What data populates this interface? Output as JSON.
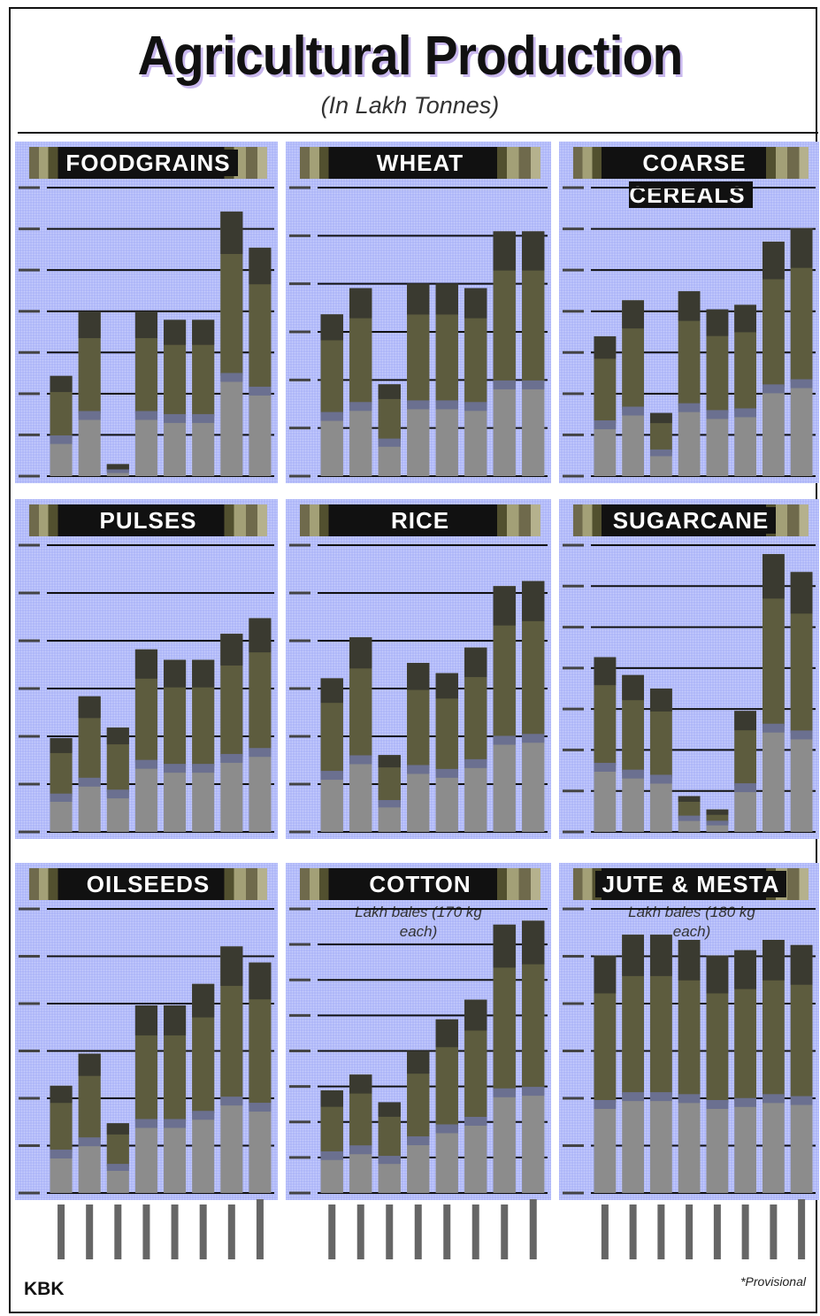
{
  "title": "Agricultural Production",
  "subtitle": "(In Lakh Tonnes)",
  "footer": {
    "credit": "KBK",
    "note": "*Provisional"
  },
  "colors": {
    "panel_bg": "#aab3f8",
    "bar_top": "#3a3a30",
    "bar_mid": "#5d5c3e",
    "bar_band": "#6b7090",
    "bar_base": "#8c8c8c",
    "grid": "#111111"
  },
  "chart_data": [
    {
      "type": "bar",
      "title": "FOODGRAINS",
      "note": "",
      "values": [
        25,
        41,
        3,
        41,
        39,
        39,
        66,
        57
      ],
      "ylim": [
        0,
        72
      ],
      "gridlines": 7
    },
    {
      "type": "bar",
      "title": "WHEAT",
      "note": "",
      "values": [
        37,
        43,
        21,
        44,
        44,
        43,
        56,
        56
      ],
      "ylim": [
        0,
        66
      ],
      "gridlines": 6
    },
    {
      "type": "bar",
      "title": "COARSE CEREALS",
      "note": "",
      "values": [
        31,
        39,
        14,
        41,
        37,
        38,
        52,
        55
      ],
      "ylim": [
        0,
        64
      ],
      "gridlines": 7
    },
    {
      "type": "bar",
      "title": "PULSES",
      "note": "",
      "values": [
        18,
        26,
        20,
        35,
        33,
        33,
        38,
        41
      ],
      "ylim": [
        0,
        55
      ],
      "gridlines": 6
    },
    {
      "type": "bar",
      "title": "RICE",
      "note": "",
      "values": [
        30,
        38,
        15,
        33,
        31,
        36,
        48,
        49
      ],
      "ylim": [
        0,
        56
      ],
      "gridlines": 6
    },
    {
      "type": "bar",
      "title": "SUGARCANE",
      "note": "",
      "values": [
        39,
        35,
        32,
        8,
        5,
        27,
        62,
        58
      ],
      "ylim": [
        0,
        64
      ],
      "gridlines": 7
    },
    {
      "type": "bar",
      "title": "OILSEEDS",
      "note": "",
      "values": [
        20,
        26,
        13,
        35,
        35,
        39,
        46,
        43
      ],
      "ylim": [
        0,
        53
      ],
      "gridlines": 6
    },
    {
      "type": "bar",
      "title": "COTTON",
      "note": "Lakh bales (170 kg each)",
      "values": [
        26,
        30,
        23,
        36,
        44,
        49,
        68,
        69
      ],
      "ylim": [
        0,
        72
      ],
      "gridlines": 8
    },
    {
      "type": "bar",
      "title": "JUTE & MESTA",
      "note": "Lakh bales (180 kg each)",
      "values": [
        46,
        50,
        50,
        49,
        46,
        47,
        49,
        48
      ],
      "ylim": [
        0,
        55
      ],
      "gridlines": 6
    }
  ]
}
